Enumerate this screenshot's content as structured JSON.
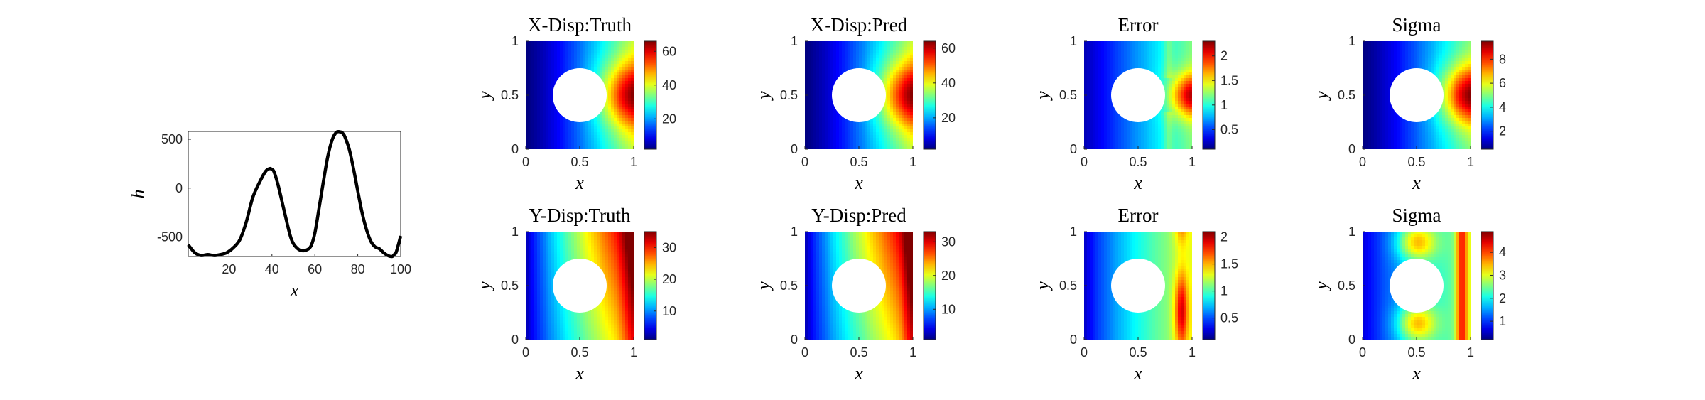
{
  "chart_data": [
    {
      "type": "line",
      "xlabel": "x",
      "ylabel": "h",
      "xlim": [
        1,
        100
      ],
      "ylim": [
        -700,
        580
      ],
      "xticks": [
        "20",
        "40",
        "60",
        "80",
        "100"
      ],
      "yticks": [
        "-500",
        "0",
        "500"
      ],
      "series": [
        {
          "x": [
            1,
            4,
            7,
            10,
            13,
            16,
            19,
            22,
            25,
            28,
            31,
            34,
            37,
            39,
            40,
            41,
            43,
            46,
            49,
            52,
            55,
            58,
            60,
            62,
            64,
            66,
            68,
            70,
            72,
            73,
            74,
            76,
            78,
            80,
            82,
            84,
            86,
            88,
            90,
            92,
            94,
            96,
            97,
            98,
            100
          ],
          "y": [
            -580,
            -660,
            -690,
            -680,
            -690,
            -680,
            -660,
            -610,
            -530,
            -350,
            -100,
            50,
            170,
            200,
            190,
            165,
            20,
            -260,
            -520,
            -620,
            -640,
            -600,
            -460,
            -200,
            70,
            320,
            490,
            570,
            575,
            560,
            525,
            400,
            200,
            -30,
            -250,
            -420,
            -540,
            -600,
            -620,
            -660,
            -690,
            -700,
            -680,
            -650,
            -490
          ]
        }
      ],
      "color": "#000000"
    },
    {
      "type": "heatmap",
      "title": "X-Disp:Truth",
      "xlabel": "x",
      "ylabel": "y",
      "xticks": [
        "0",
        "0.5",
        "1"
      ],
      "yticks": [
        "0",
        "0.5",
        "1"
      ],
      "colorbar_ticks": [
        "20",
        "40",
        "60"
      ],
      "colorbar_range": [
        2,
        66
      ],
      "colormap": "jet",
      "hole": {
        "center": [
          0.5,
          0.5
        ],
        "radius": 0.25
      }
    },
    {
      "type": "heatmap",
      "title": "X-Disp:Pred",
      "xlabel": "x",
      "ylabel": "y",
      "xticks": [
        "0",
        "0.5",
        "1"
      ],
      "yticks": [
        "0",
        "0.5",
        "1"
      ],
      "colorbar_ticks": [
        "20",
        "40",
        "60"
      ],
      "colorbar_range": [
        2,
        64
      ],
      "colormap": "jet",
      "hole": {
        "center": [
          0.5,
          0.5
        ],
        "radius": 0.25
      }
    },
    {
      "type": "heatmap",
      "title": "Error",
      "xlabel": "x",
      "ylabel": "y",
      "xticks": [
        "0",
        "0.5",
        "1"
      ],
      "yticks": [
        "0",
        "0.5",
        "1"
      ],
      "colorbar_ticks": [
        "0.5",
        "1",
        "1.5",
        "2"
      ],
      "colorbar_range": [
        0.1,
        2.3
      ],
      "colormap": "jet",
      "hole": {
        "center": [
          0.5,
          0.5
        ],
        "radius": 0.25
      }
    },
    {
      "type": "heatmap",
      "title": "Sigma",
      "xlabel": "x",
      "ylabel": "y",
      "xticks": [
        "0",
        "0.5",
        "1"
      ],
      "yticks": [
        "0",
        "0.5",
        "1"
      ],
      "colorbar_ticks": [
        "2",
        "4",
        "6",
        "8"
      ],
      "colorbar_range": [
        0.5,
        9.5
      ],
      "colormap": "jet",
      "hole": {
        "center": [
          0.5,
          0.5
        ],
        "radius": 0.25
      }
    },
    {
      "type": "heatmap",
      "title": "Y-Disp:Truth",
      "xlabel": "x",
      "ylabel": "y",
      "xticks": [
        "0",
        "0.5",
        "1"
      ],
      "yticks": [
        "0",
        "0.5",
        "1"
      ],
      "colorbar_ticks": [
        "10",
        "20",
        "30"
      ],
      "colorbar_range": [
        1,
        35
      ],
      "colormap": "jet",
      "hole": {
        "center": [
          0.5,
          0.5
        ],
        "radius": 0.25
      }
    },
    {
      "type": "heatmap",
      "title": "Y-Disp:Pred",
      "xlabel": "x",
      "ylabel": "y",
      "xticks": [
        "0",
        "0.5",
        "1"
      ],
      "yticks": [
        "0",
        "0.5",
        "1"
      ],
      "colorbar_ticks": [
        "10",
        "20",
        "30"
      ],
      "colorbar_range": [
        1,
        33
      ],
      "colormap": "jet",
      "hole": {
        "center": [
          0.5,
          0.5
        ],
        "radius": 0.25
      }
    },
    {
      "type": "heatmap",
      "title": "Error",
      "xlabel": "x",
      "ylabel": "y",
      "xticks": [
        "0",
        "0.5",
        "1"
      ],
      "yticks": [
        "0",
        "0.5",
        "1"
      ],
      "colorbar_ticks": [
        "0.5",
        "1",
        "1.5",
        "2"
      ],
      "colorbar_range": [
        0.1,
        2.1
      ],
      "colormap": "jet",
      "hole": {
        "center": [
          0.5,
          0.5
        ],
        "radius": 0.25
      }
    },
    {
      "type": "heatmap",
      "title": "Sigma",
      "xlabel": "x",
      "ylabel": "y",
      "xticks": [
        "0",
        "0.5",
        "1"
      ],
      "yticks": [
        "0",
        "0.5",
        "1"
      ],
      "colorbar_ticks": [
        "1",
        "2",
        "3",
        "4"
      ],
      "colorbar_range": [
        0.2,
        4.9
      ],
      "colormap": "jet",
      "hole": {
        "center": [
          0.5,
          0.5
        ],
        "radius": 0.25
      }
    }
  ]
}
